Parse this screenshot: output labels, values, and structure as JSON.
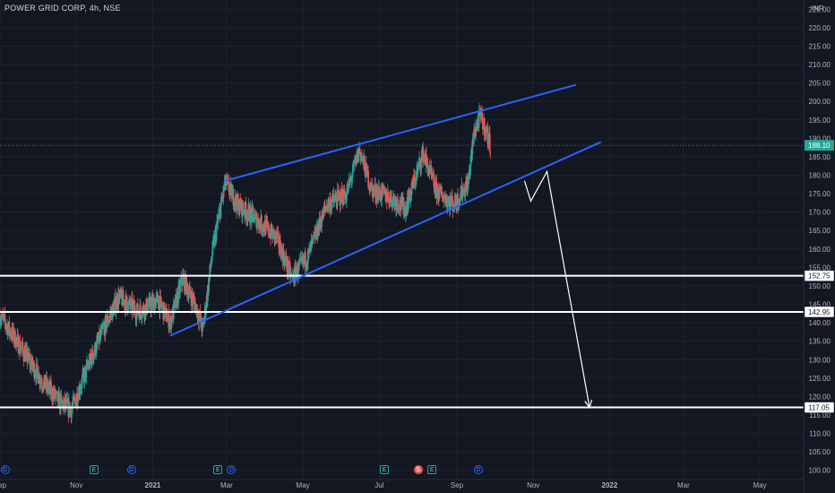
{
  "header": {
    "title": "POWER GRID CORP, 4h, NSE",
    "currency": "INR"
  },
  "colors": {
    "background": "#131722",
    "grid": "#1e222d",
    "up": "#26a69a",
    "down": "#ef5350",
    "channel": "#2962ff",
    "level": "#ffffff",
    "axis_text": "#b2b5be",
    "last_price_line": "#26a69a"
  },
  "chart_data": {
    "type": "candlestick",
    "y_axis": {
      "ylim": [
        97.5,
        227.5
      ],
      "ticks": [
        225,
        220,
        215,
        210,
        205,
        200,
        195,
        190,
        185,
        180,
        175,
        170,
        165,
        160,
        155,
        150,
        145,
        140,
        135,
        130,
        125,
        120,
        115,
        110,
        105,
        100
      ],
      "tick_labels": [
        "225.00",
        "220.00",
        "215.00",
        "210.00",
        "205.00",
        "200.00",
        "195.00",
        "190.00",
        "185.00",
        "180.00",
        "175.00",
        "170.00",
        "165.00",
        "160.00",
        "155.00",
        "150.00",
        "145.00",
        "140.00",
        "135.00",
        "130.00",
        "125.00",
        "120.00",
        "115.00",
        "110.00",
        "105.00",
        "100.00"
      ]
    },
    "x_axis": {
      "range": [
        "2020-09-01",
        "2022-06-05"
      ],
      "ticks": [
        {
          "date": "2020-09-01",
          "label": "Sep"
        },
        {
          "date": "2020-11-01",
          "label": "Nov"
        },
        {
          "date": "2021-01-01",
          "label": "2021"
        },
        {
          "date": "2021-03-01",
          "label": "Mar"
        },
        {
          "date": "2021-05-01",
          "label": "May"
        },
        {
          "date": "2021-07-01",
          "label": "Jul"
        },
        {
          "date": "2021-09-01",
          "label": "Sep"
        },
        {
          "date": "2021-11-01",
          "label": "Nov"
        },
        {
          "date": "2022-01-01",
          "label": "2022"
        },
        {
          "date": "2022-03-01",
          "label": "Mar"
        },
        {
          "date": "2022-05-01",
          "label": "May"
        }
      ]
    },
    "price_path": [
      {
        "x": "2020-09-01",
        "y": 142
      },
      {
        "x": "2020-09-20",
        "y": 132
      },
      {
        "x": "2020-10-05",
        "y": 124
      },
      {
        "x": "2020-10-20",
        "y": 118
      },
      {
        "x": "2020-10-28",
        "y": 116.5
      },
      {
        "x": "2020-11-10",
        "y": 128
      },
      {
        "x": "2020-11-25",
        "y": 140
      },
      {
        "x": "2020-12-05",
        "y": 147
      },
      {
        "x": "2020-12-20",
        "y": 143
      },
      {
        "x": "2021-01-05",
        "y": 146
      },
      {
        "x": "2021-01-15",
        "y": 140
      },
      {
        "x": "2021-01-25",
        "y": 152
      },
      {
        "x": "2021-02-05",
        "y": 144
      },
      {
        "x": "2021-02-10",
        "y": 138
      },
      {
        "x": "2021-02-18",
        "y": 160
      },
      {
        "x": "2021-02-28",
        "y": 178
      },
      {
        "x": "2021-03-10",
        "y": 172
      },
      {
        "x": "2021-03-25",
        "y": 168
      },
      {
        "x": "2021-04-10",
        "y": 163
      },
      {
        "x": "2021-04-22",
        "y": 152
      },
      {
        "x": "2021-05-05",
        "y": 158
      },
      {
        "x": "2021-05-20",
        "y": 172
      },
      {
        "x": "2021-06-05",
        "y": 175
      },
      {
        "x": "2021-06-15",
        "y": 187
      },
      {
        "x": "2021-06-25",
        "y": 176
      },
      {
        "x": "2021-07-10",
        "y": 174
      },
      {
        "x": "2021-07-22",
        "y": 171
      },
      {
        "x": "2021-08-05",
        "y": 186
      },
      {
        "x": "2021-08-15",
        "y": 176
      },
      {
        "x": "2021-08-30",
        "y": 172
      },
      {
        "x": "2021-09-10",
        "y": 178
      },
      {
        "x": "2021-09-15",
        "y": 192
      },
      {
        "x": "2021-09-20",
        "y": 196
      },
      {
        "x": "2021-09-28",
        "y": 188.1
      }
    ],
    "last_price": {
      "value": 188.1,
      "label": "188.10"
    },
    "horizontal_levels": [
      {
        "value": 152.75,
        "label": "152.75"
      },
      {
        "value": 142.95,
        "label": "142.95"
      },
      {
        "value": 117.05,
        "label": "117.05"
      }
    ],
    "channel_lines": [
      {
        "name": "upper",
        "from": {
          "x": "2021-02-28",
          "y": 178.5
        },
        "to": {
          "x": "2021-12-05",
          "y": 204.5
        }
      },
      {
        "name": "lower",
        "from": {
          "x": "2021-01-15",
          "y": 136.5
        },
        "to": {
          "x": "2021-12-25",
          "y": 189
        }
      }
    ],
    "projection_path": [
      {
        "x": "2021-10-25",
        "y": 178.5
      },
      {
        "x": "2021-10-30",
        "y": 173
      },
      {
        "x": "2021-11-12",
        "y": 181
      },
      {
        "x": "2021-12-16",
        "y": 117
      }
    ],
    "events": [
      {
        "type": "D",
        "x": "2020-09-05"
      },
      {
        "type": "E",
        "x": "2020-11-15"
      },
      {
        "type": "D",
        "x": "2020-12-15"
      },
      {
        "type": "E",
        "x": "2021-02-22"
      },
      {
        "type": "D",
        "x": "2021-03-05"
      },
      {
        "type": "E",
        "x": "2021-07-05"
      },
      {
        "type": "S",
        "x": "2021-08-01"
      },
      {
        "type": "E",
        "x": "2021-08-12"
      },
      {
        "type": "D",
        "x": "2021-09-18"
      }
    ]
  }
}
